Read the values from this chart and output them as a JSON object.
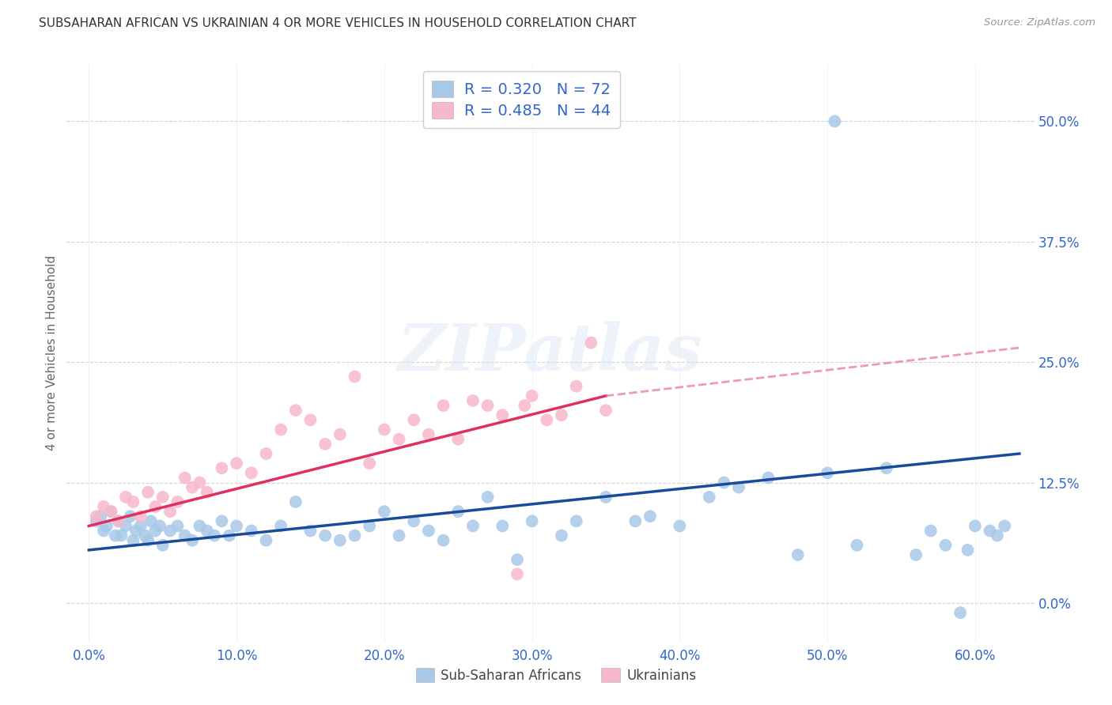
{
  "title": "SUBSAHARAN AFRICAN VS UKRAINIAN 4 OR MORE VEHICLES IN HOUSEHOLD CORRELATION CHART",
  "source": "Source: ZipAtlas.com",
  "xlabel_vals": [
    0.0,
    10.0,
    20.0,
    30.0,
    40.0,
    50.0,
    60.0
  ],
  "ylabel_vals": [
    0.0,
    12.5,
    25.0,
    37.5,
    50.0
  ],
  "xlim": [
    -1.5,
    64.0
  ],
  "ylim": [
    -4.0,
    56.0
  ],
  "ylabel": "4 or more Vehicles in Household",
  "blue_color": "#a8c8e8",
  "blue_line_color": "#1a4a9a",
  "pink_color": "#f8b8cc",
  "pink_line_color": "#e03060",
  "pink_dash_color": "#e878a0",
  "legend_text_color": "#3366cc",
  "grid_color": "#d0d0d0",
  "bg_color": "#ffffff",
  "blue_R": 0.32,
  "blue_N": 72,
  "pink_R": 0.485,
  "pink_N": 44,
  "blue_scatter_x": [
    0.5,
    0.8,
    1.0,
    1.2,
    1.5,
    1.8,
    2.0,
    2.2,
    2.5,
    2.8,
    3.0,
    3.2,
    3.5,
    3.8,
    4.0,
    4.2,
    4.5,
    4.8,
    5.0,
    5.5,
    6.0,
    6.5,
    7.0,
    7.5,
    8.0,
    8.5,
    9.0,
    9.5,
    10.0,
    11.0,
    12.0,
    13.0,
    14.0,
    15.0,
    16.0,
    17.0,
    18.0,
    19.0,
    20.0,
    21.0,
    22.0,
    23.0,
    24.0,
    25.0,
    26.0,
    27.0,
    28.0,
    29.0,
    30.0,
    32.0,
    33.0,
    35.0,
    37.0,
    38.0,
    40.0,
    42.0,
    43.0,
    44.0,
    46.0,
    48.0,
    50.0,
    52.0,
    54.0,
    56.0,
    57.0,
    58.0,
    59.0,
    60.0,
    61.0,
    62.0,
    59.5,
    61.5
  ],
  "blue_scatter_y": [
    8.5,
    9.0,
    7.5,
    8.0,
    9.5,
    7.0,
    8.5,
    7.0,
    8.0,
    9.0,
    6.5,
    7.5,
    8.0,
    7.0,
    6.5,
    8.5,
    7.5,
    8.0,
    6.0,
    7.5,
    8.0,
    7.0,
    6.5,
    8.0,
    7.5,
    7.0,
    8.5,
    7.0,
    8.0,
    7.5,
    6.5,
    8.0,
    10.5,
    7.5,
    7.0,
    6.5,
    7.0,
    8.0,
    9.5,
    7.0,
    8.5,
    7.5,
    6.5,
    9.5,
    8.0,
    11.0,
    8.0,
    4.5,
    8.5,
    7.0,
    8.5,
    11.0,
    8.5,
    9.0,
    8.0,
    11.0,
    12.5,
    12.0,
    13.0,
    5.0,
    13.5,
    6.0,
    14.0,
    5.0,
    7.5,
    6.0,
    -1.0,
    8.0,
    7.5,
    8.0,
    5.5,
    7.0
  ],
  "blue_outlier_x": [
    50.5
  ],
  "blue_outlier_y": [
    50.0
  ],
  "pink_scatter_x": [
    0.5,
    1.0,
    1.5,
    2.0,
    2.5,
    3.0,
    3.5,
    4.0,
    4.5,
    5.0,
    5.5,
    6.0,
    6.5,
    7.0,
    7.5,
    8.0,
    9.0,
    10.0,
    11.0,
    12.0,
    13.0,
    14.0,
    15.0,
    16.0,
    17.0,
    18.0,
    19.0,
    20.0,
    21.0,
    22.0,
    23.0,
    24.0,
    25.0,
    26.0,
    27.0,
    28.0,
    29.0,
    30.0,
    31.0,
    32.0,
    33.0,
    34.0,
    35.0,
    29.5
  ],
  "pink_scatter_y": [
    9.0,
    10.0,
    9.5,
    8.5,
    11.0,
    10.5,
    9.0,
    11.5,
    10.0,
    11.0,
    9.5,
    10.5,
    13.0,
    12.0,
    12.5,
    11.5,
    14.0,
    14.5,
    13.5,
    15.5,
    18.0,
    20.0,
    19.0,
    16.5,
    17.5,
    23.5,
    14.5,
    18.0,
    17.0,
    19.0,
    17.5,
    20.5,
    17.0,
    21.0,
    20.5,
    19.5,
    3.0,
    21.5,
    19.0,
    19.5,
    22.5,
    27.0,
    20.0,
    20.5
  ],
  "watermark": "ZIPatlas",
  "blue_trend_start_x": 0.0,
  "blue_trend_end_x": 63.0,
  "blue_trend_start_y": 5.5,
  "blue_trend_end_y": 15.5,
  "pink_trend_start_x": 0.0,
  "pink_trend_solid_end_x": 35.0,
  "pink_trend_end_x": 63.0,
  "pink_trend_start_y": 8.0,
  "pink_trend_solid_end_y": 21.5,
  "pink_trend_end_y": 26.5
}
